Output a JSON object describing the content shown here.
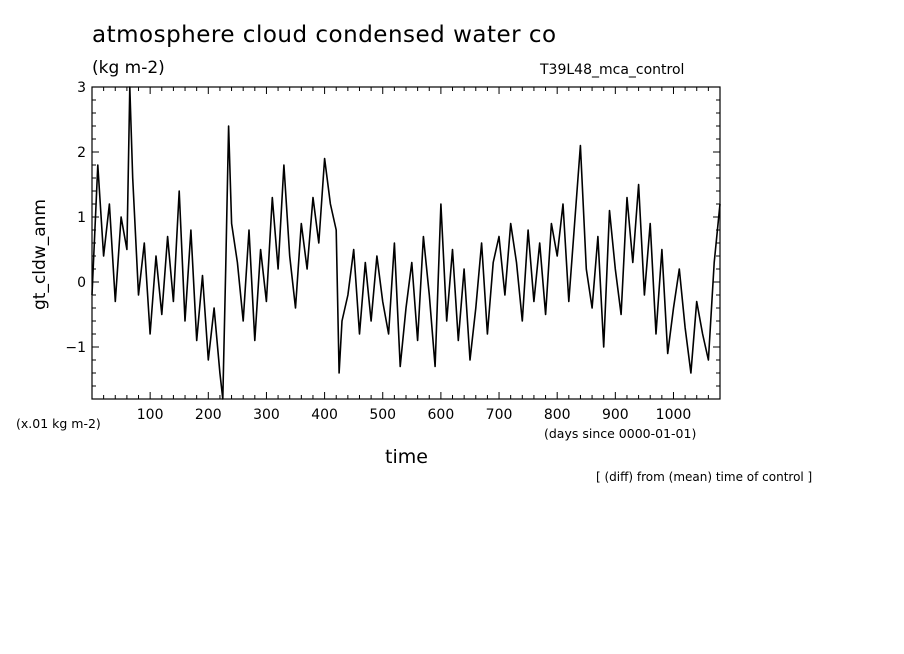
{
  "chart_data": {
    "type": "line",
    "title": "atmosphere cloud condensed water co",
    "units_label": "(kg m-2)",
    "run_label": "T39L48_mca_control",
    "ylabel": "gt_cldw_anm",
    "y_scale_label": "(x.01 kg m-2)",
    "xlabel": "time",
    "x_units_label": "(days since 0000-01-01)",
    "footnote": "[ (diff) from (mean) time of control ]",
    "xlim": [
      0,
      1080
    ],
    "ylim": [
      -1.8,
      3.0
    ],
    "x_ticks": [
      100,
      200,
      300,
      400,
      500,
      600,
      700,
      800,
      900,
      1000
    ],
    "y_ticks": [
      -1,
      0,
      1,
      2,
      3
    ],
    "grid": false,
    "series": [
      {
        "color": "#000000",
        "x": [
          0,
          10,
          20,
          30,
          40,
          50,
          60,
          65,
          70,
          80,
          90,
          100,
          110,
          120,
          130,
          140,
          150,
          160,
          170,
          180,
          190,
          200,
          210,
          220,
          225,
          230,
          235,
          240,
          250,
          260,
          270,
          280,
          290,
          300,
          310,
          320,
          330,
          340,
          350,
          360,
          370,
          380,
          390,
          400,
          410,
          420,
          425,
          430,
          440,
          450,
          460,
          470,
          480,
          490,
          500,
          510,
          520,
          530,
          540,
          550,
          560,
          570,
          580,
          590,
          600,
          610,
          620,
          630,
          640,
          650,
          660,
          670,
          680,
          690,
          700,
          710,
          720,
          730,
          740,
          750,
          760,
          770,
          780,
          790,
          800,
          810,
          820,
          830,
          840,
          850,
          860,
          870,
          880,
          890,
          900,
          910,
          920,
          930,
          940,
          950,
          960,
          970,
          980,
          990,
          1000,
          1010,
          1020,
          1030,
          1040,
          1050,
          1060,
          1070,
          1080
        ],
        "values": [
          -0.2,
          1.8,
          0.4,
          1.2,
          -0.3,
          1.0,
          0.5,
          3.0,
          1.6,
          -0.2,
          0.6,
          -0.8,
          0.4,
          -0.5,
          0.7,
          -0.3,
          1.4,
          -0.6,
          0.8,
          -0.9,
          0.1,
          -1.2,
          -0.4,
          -1.4,
          -1.8,
          0.2,
          2.4,
          0.9,
          0.3,
          -0.6,
          0.8,
          -0.9,
          0.5,
          -0.3,
          1.3,
          0.2,
          1.8,
          0.4,
          -0.4,
          0.9,
          0.2,
          1.3,
          0.6,
          1.9,
          1.2,
          0.8,
          -1.4,
          -0.6,
          -0.2,
          0.5,
          -0.8,
          0.3,
          -0.6,
          0.4,
          -0.3,
          -0.8,
          0.6,
          -1.3,
          -0.4,
          0.3,
          -0.9,
          0.7,
          -0.2,
          -1.3,
          1.2,
          -0.6,
          0.5,
          -0.9,
          0.2,
          -1.2,
          -0.4,
          0.6,
          -0.8,
          0.3,
          0.7,
          -0.2,
          0.9,
          0.3,
          -0.6,
          0.8,
          -0.3,
          0.6,
          -0.5,
          0.9,
          0.4,
          1.2,
          -0.3,
          0.9,
          2.1,
          0.2,
          -0.4,
          0.7,
          -1.0,
          1.1,
          0.2,
          -0.5,
          1.3,
          0.3,
          1.5,
          -0.2,
          0.9,
          -0.8,
          0.5,
          -1.1,
          -0.4,
          0.2,
          -0.7,
          -1.4,
          -0.3,
          -0.8,
          -1.2,
          0.3,
          1.2
        ]
      }
    ]
  }
}
